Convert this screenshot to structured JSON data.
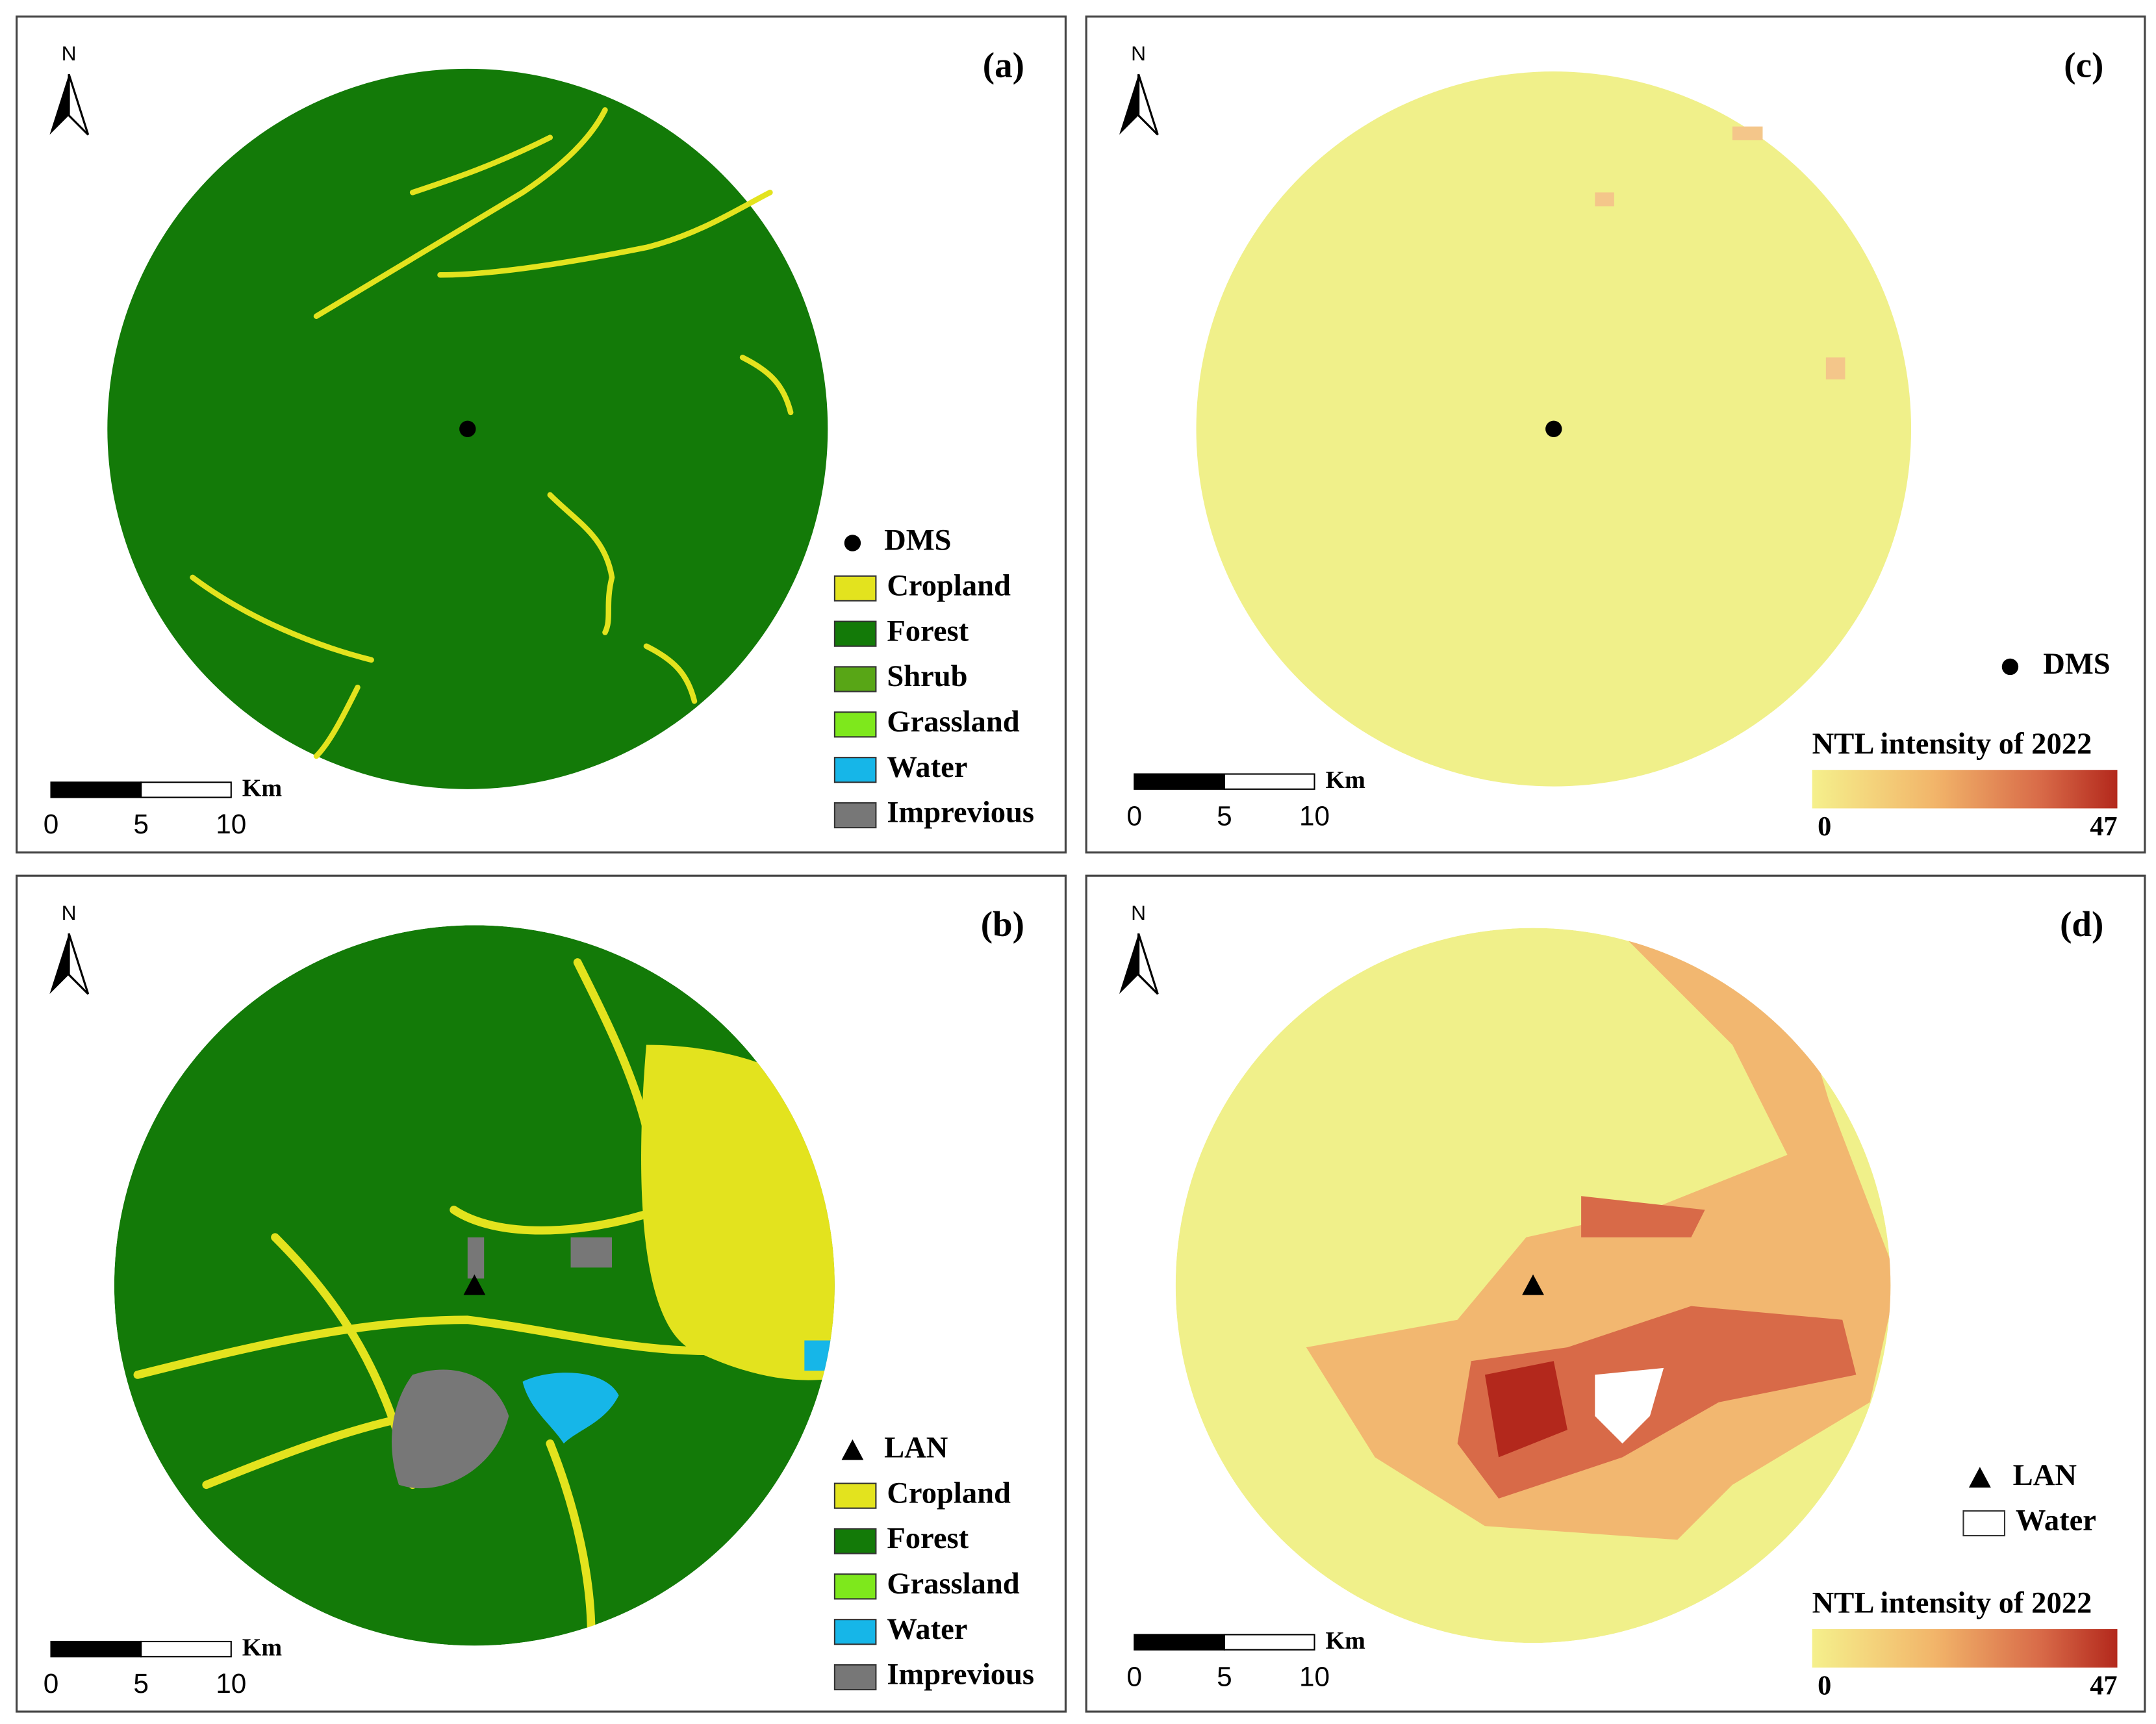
{
  "panels": [
    {
      "label": "(a)",
      "north": "N",
      "marker": "DMS",
      "legend": [
        {
          "label": "Cropland",
          "color": "#e3e31e"
        },
        {
          "label": "Forest",
          "color": "#137a08"
        },
        {
          "label": "Shrub",
          "color": "#58a616"
        },
        {
          "label": "Grassland",
          "color": "#7ee81c"
        },
        {
          "label": "Water",
          "color": "#16b6e8"
        },
        {
          "label": "Imprevious",
          "color": "#777777"
        }
      ],
      "scale": {
        "unit": "Km",
        "ticks": [
          0,
          5,
          10
        ]
      }
    },
    {
      "label": "(c)",
      "north": "N",
      "marker": "DMS",
      "colorbar": {
        "title": "NTL intensity of 2022",
        "min": 0,
        "max": 47
      },
      "scale": {
        "unit": "Km",
        "ticks": [
          0,
          5,
          10
        ]
      }
    },
    {
      "label": "(b)",
      "north": "N",
      "marker": "LAN",
      "legend": [
        {
          "label": "Cropland",
          "color": "#e3e31e"
        },
        {
          "label": "Forest",
          "color": "#137a08"
        },
        {
          "label": "Grassland",
          "color": "#7ee81c"
        },
        {
          "label": "Water",
          "color": "#16b6e8"
        },
        {
          "label": "Imprevious",
          "color": "#777777"
        }
      ],
      "scale": {
        "unit": "Km",
        "ticks": [
          0,
          5,
          10
        ]
      }
    },
    {
      "label": "(d)",
      "north": "N",
      "marker": "LAN",
      "legend": [
        {
          "label": "Water",
          "color": "#ffffff"
        }
      ],
      "colorbar": {
        "title": "NTL intensity of 2022",
        "min": 0,
        "max": 47
      },
      "scale": {
        "unit": "Km",
        "ticks": [
          0,
          5,
          10
        ]
      }
    }
  ]
}
